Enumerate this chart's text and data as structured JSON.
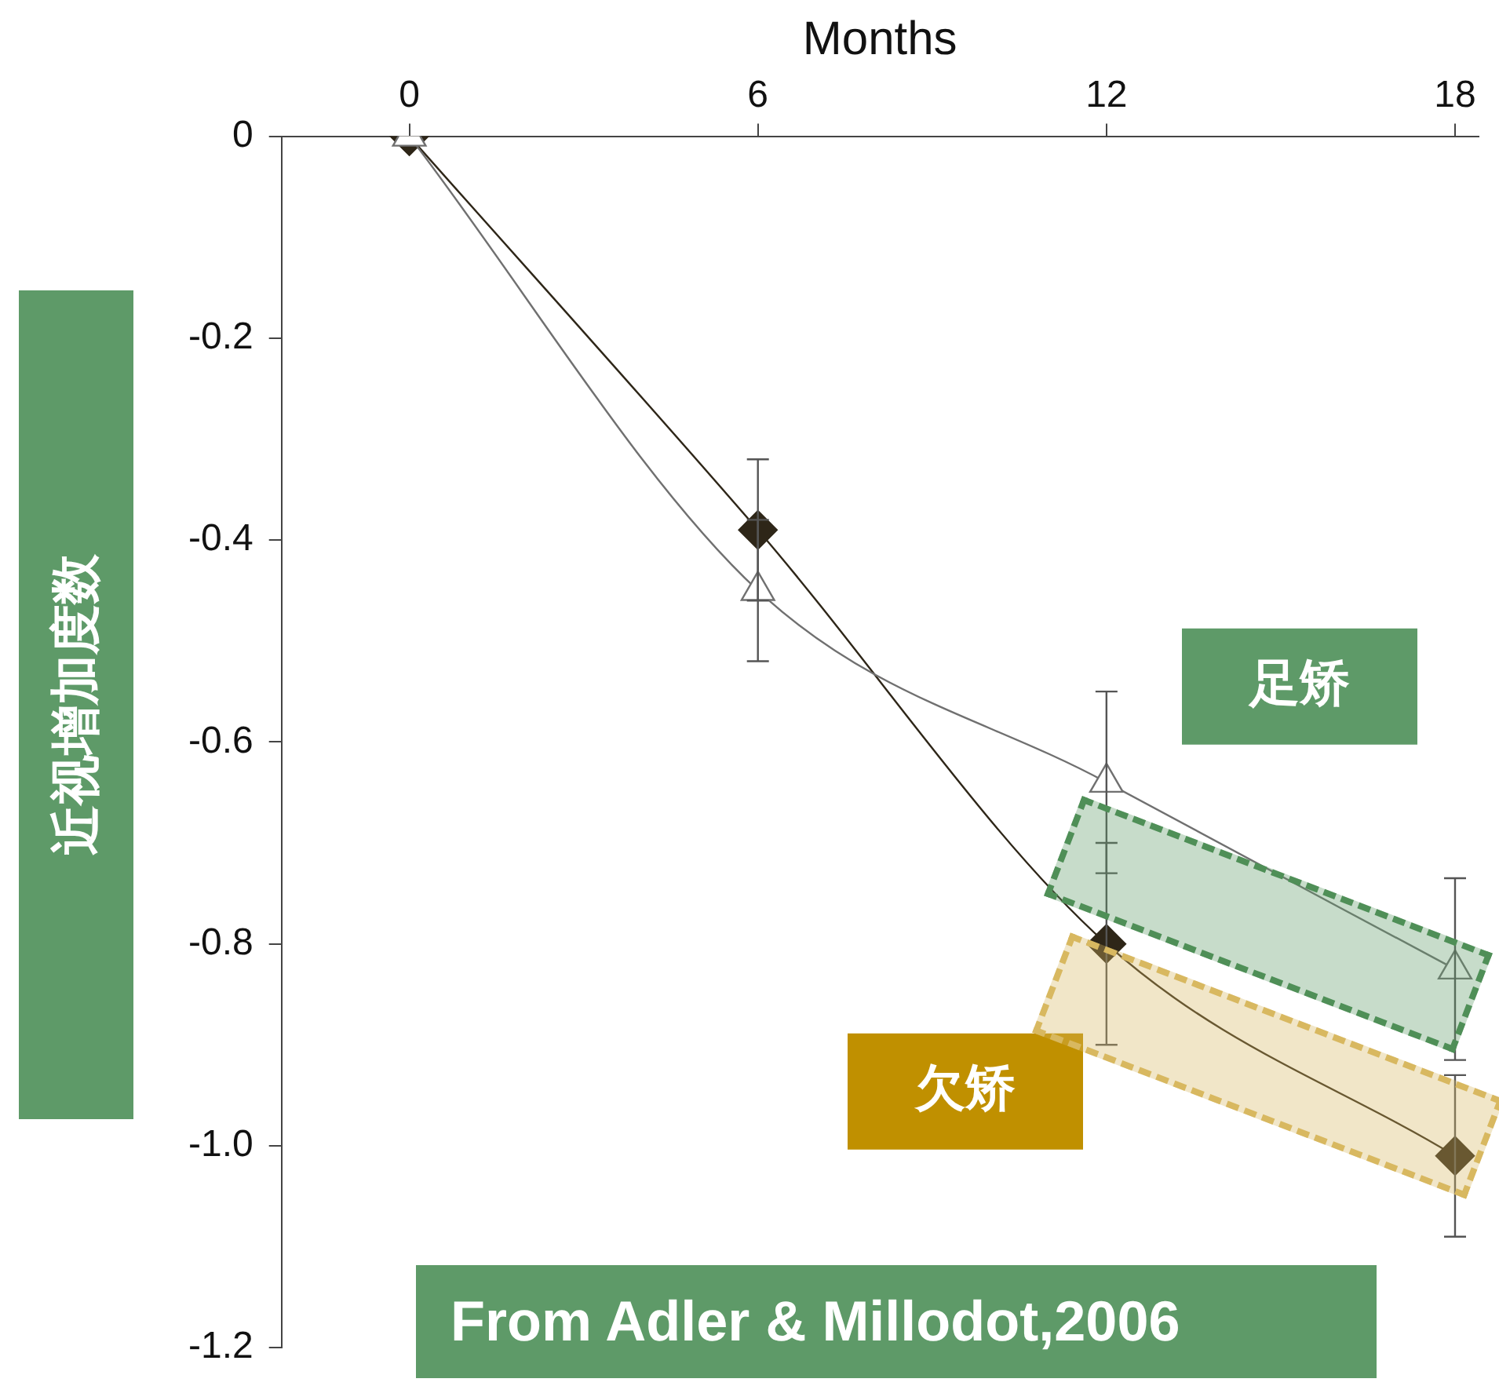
{
  "chart_data": {
    "type": "line",
    "xlabel": "Months",
    "ylabel": "近视增加度数",
    "x": [
      0,
      6,
      12,
      18
    ],
    "xlim": [
      -2.2,
      18.4
    ],
    "xticks": [
      0,
      6,
      12,
      18
    ],
    "ylim": [
      -1.2,
      0
    ],
    "yticks": [
      {
        "value": 0,
        "label": "0"
      },
      -0.2,
      -0.4,
      -0.6,
      -0.8,
      {
        "value": -1,
        "label": "-1.0"
      },
      -1.2
    ],
    "grid": false,
    "legend": false,
    "line_style": "solid",
    "series": [
      {
        "name": "足矫",
        "color": "#707070",
        "marker": "triangle",
        "values": [
          0,
          -0.45,
          -0.64,
          -0.825
        ],
        "errors": [
          null,
          0.07,
          0.09,
          0.09
        ]
      },
      {
        "name": "欠矫",
        "color": "#2e2618",
        "marker": "diamond",
        "values": [
          0,
          -0.39,
          -0.8,
          -1.01
        ],
        "errors": [
          null,
          0.07,
          0.1,
          0.08
        ]
      }
    ],
    "annotations": [
      "From Adler & Millodot,2006"
    ]
  }
}
